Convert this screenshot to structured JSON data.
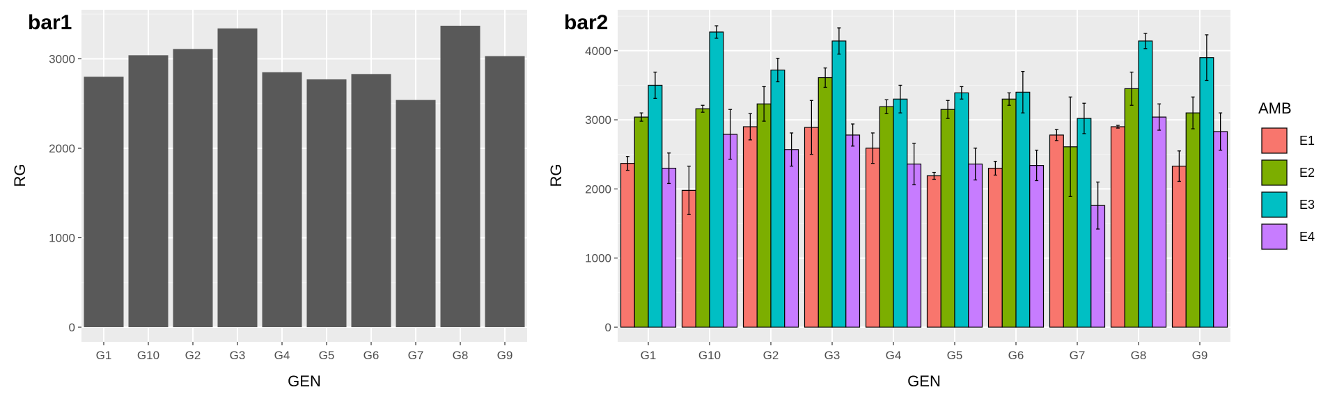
{
  "chart_data": [
    {
      "id": "bar1",
      "type": "bar",
      "title": "bar1",
      "xlabel": "GEN",
      "ylabel": "RG",
      "ylim": [
        0,
        3500
      ],
      "yticks": [
        0,
        1000,
        2000,
        3000
      ],
      "categories": [
        "G1",
        "G10",
        "G2",
        "G3",
        "G4",
        "G5",
        "G6",
        "G7",
        "G8",
        "G9"
      ],
      "values": [
        2800,
        3040,
        3110,
        3340,
        2850,
        2770,
        2830,
        2540,
        3370,
        3030
      ],
      "bar_color": "#595959",
      "grid": true
    },
    {
      "id": "bar2",
      "type": "bar",
      "title": "bar2",
      "xlabel": "GEN",
      "ylabel": "RG",
      "ylim": [
        0,
        4500
      ],
      "yticks": [
        0,
        1000,
        2000,
        3000,
        4000
      ],
      "categories": [
        "G1",
        "G10",
        "G2",
        "G3",
        "G4",
        "G5",
        "G6",
        "G7",
        "G8",
        "G9"
      ],
      "grid": true,
      "legend": {
        "title": "AMB",
        "position": "right"
      },
      "series": [
        {
          "name": "E1",
          "color": "#F8766D",
          "values": [
            2370,
            1980,
            2900,
            2890,
            2590,
            2190,
            2300,
            2780,
            2900,
            2330
          ],
          "errors": [
            100,
            350,
            190,
            390,
            220,
            50,
            100,
            80,
            20,
            220
          ]
        },
        {
          "name": "E2",
          "color": "#7CAE00",
          "values": [
            3040,
            3160,
            3230,
            3610,
            3190,
            3150,
            3300,
            2610,
            3450,
            3100
          ],
          "errors": [
            60,
            50,
            250,
            140,
            100,
            130,
            90,
            720,
            240,
            230
          ]
        },
        {
          "name": "E3",
          "color": "#00BFC4",
          "values": [
            3500,
            4270,
            3720,
            4140,
            3300,
            3390,
            3400,
            3020,
            4140,
            3900
          ],
          "errors": [
            190,
            90,
            170,
            190,
            200,
            90,
            300,
            220,
            110,
            330
          ]
        },
        {
          "name": "E4",
          "color": "#C77CFF",
          "values": [
            2300,
            2790,
            2570,
            2780,
            2360,
            2360,
            2340,
            1760,
            3040,
            2830
          ],
          "errors": [
            220,
            360,
            240,
            160,
            300,
            230,
            220,
            340,
            190,
            270
          ]
        }
      ]
    }
  ]
}
